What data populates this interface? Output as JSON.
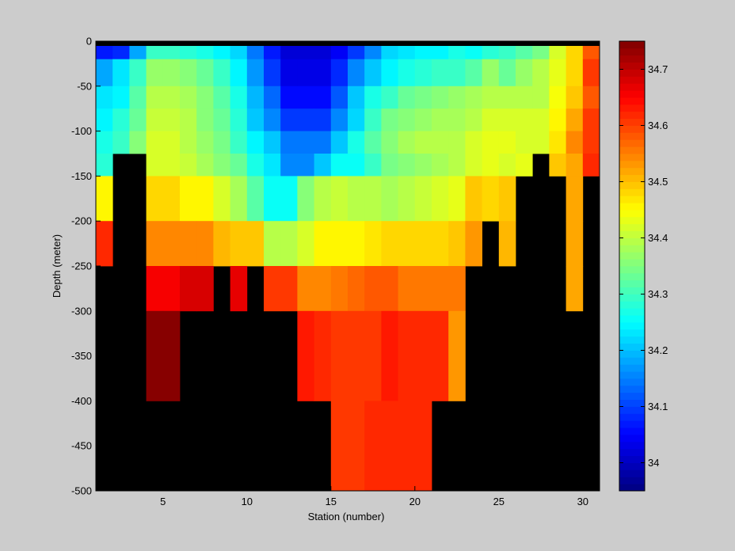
{
  "chart_data": {
    "type": "heatmap",
    "title": "",
    "xlabel": "Station (number)",
    "ylabel": "Depth (meter)",
    "xlim": [
      1,
      31
    ],
    "ylim": [
      -500,
      0
    ],
    "xticks": [
      5,
      10,
      15,
      20,
      25,
      30
    ],
    "yticks": [
      0,
      -50,
      -100,
      -150,
      -200,
      -250,
      -300,
      -350,
      -400,
      -450,
      -500
    ],
    "colorbar": {
      "range": [
        33.95,
        34.75
      ],
      "ticks": [
        34,
        34.1,
        34.2,
        34.3,
        34.4,
        34.5,
        34.6,
        34.7
      ],
      "colormap": "jet",
      "levels": 64
    },
    "missing_color": "#000000",
    "stations": [
      1,
      2,
      3,
      4,
      5,
      6,
      7,
      8,
      9,
      10,
      11,
      12,
      13,
      14,
      15,
      16,
      17,
      18,
      19,
      20,
      21,
      22,
      23,
      24,
      25,
      26,
      27,
      28,
      29,
      30
    ],
    "depths": [
      -5,
      -20,
      -50,
      -75,
      -100,
      -125,
      -150,
      -200,
      -250,
      -300,
      -400,
      -500
    ],
    "values": [
      [
        34.07,
        34.08,
        34.18,
        34.3,
        34.3,
        34.28,
        34.27,
        34.25,
        34.22,
        34.14,
        34.07,
        34.02,
        34.02,
        34.02,
        34.05,
        34.1,
        34.16,
        34.22,
        34.23,
        34.25,
        34.25,
        34.27,
        34.26,
        34.28,
        34.3,
        34.32,
        34.34,
        34.42,
        34.48,
        34.58
      ],
      [
        34.18,
        34.23,
        34.3,
        34.37,
        34.37,
        34.36,
        34.33,
        34.3,
        34.25,
        34.17,
        34.1,
        34.03,
        34.03,
        34.03,
        34.08,
        34.16,
        34.2,
        34.25,
        34.27,
        34.28,
        34.3,
        34.3,
        34.32,
        34.37,
        34.33,
        34.37,
        34.4,
        34.43,
        34.48,
        34.6
      ],
      [
        34.23,
        34.25,
        34.32,
        34.4,
        34.4,
        34.38,
        34.35,
        34.32,
        34.27,
        34.19,
        34.13,
        34.06,
        34.06,
        34.06,
        34.12,
        34.2,
        34.27,
        34.3,
        34.33,
        34.34,
        34.36,
        34.37,
        34.38,
        34.4,
        34.4,
        34.4,
        34.4,
        34.44,
        34.5,
        34.58
      ],
      [
        34.25,
        34.28,
        34.33,
        34.41,
        34.41,
        34.39,
        34.36,
        34.33,
        34.28,
        34.21,
        34.16,
        34.1,
        34.1,
        34.1,
        34.16,
        34.22,
        34.3,
        34.34,
        34.36,
        34.37,
        34.38,
        34.38,
        34.4,
        34.42,
        34.42,
        34.42,
        34.42,
        34.45,
        34.52,
        34.6
      ],
      [
        34.27,
        34.3,
        34.35,
        34.42,
        34.42,
        34.4,
        34.37,
        34.34,
        34.3,
        34.24,
        34.2,
        34.15,
        34.15,
        34.15,
        34.2,
        34.27,
        34.32,
        34.36,
        34.38,
        34.39,
        34.39,
        34.39,
        34.42,
        34.43,
        34.43,
        34.42,
        34.42,
        34.47,
        34.54,
        34.6
      ],
      [
        34.28,
        null,
        null,
        34.42,
        34.42,
        34.41,
        34.38,
        34.35,
        34.33,
        34.27,
        34.23,
        34.16,
        34.16,
        34.2,
        34.26,
        34.26,
        34.3,
        34.34,
        34.36,
        34.37,
        34.38,
        34.39,
        34.42,
        34.43,
        34.42,
        34.43,
        null,
        34.5,
        34.52,
        34.62
      ],
      [
        34.45,
        null,
        null,
        34.48,
        34.48,
        34.46,
        34.45,
        34.42,
        34.38,
        34.32,
        34.26,
        34.26,
        34.35,
        34.4,
        34.41,
        34.4,
        34.4,
        34.38,
        34.4,
        34.41,
        34.42,
        34.43,
        34.5,
        34.48,
        34.5,
        null,
        null,
        null,
        34.52,
        null
      ],
      [
        34.62,
        null,
        null,
        34.55,
        34.55,
        34.54,
        34.54,
        34.51,
        34.5,
        34.5,
        34.4,
        34.4,
        34.42,
        34.45,
        34.45,
        34.46,
        34.47,
        34.48,
        34.48,
        34.48,
        34.48,
        34.49,
        34.53,
        null,
        34.51,
        null,
        null,
        null,
        34.52,
        null
      ],
      [
        null,
        null,
        null,
        34.66,
        34.66,
        34.68,
        34.68,
        null,
        34.67,
        null,
        34.6,
        34.6,
        34.55,
        34.54,
        34.56,
        34.57,
        34.58,
        34.58,
        34.56,
        34.56,
        34.56,
        34.56,
        null,
        null,
        null,
        null,
        null,
        null,
        34.52,
        null
      ],
      [
        null,
        null,
        null,
        34.75,
        34.75,
        null,
        null,
        null,
        null,
        null,
        null,
        null,
        34.63,
        34.62,
        34.61,
        34.61,
        34.6,
        34.63,
        34.62,
        34.62,
        34.62,
        34.53,
        null,
        null,
        null,
        null,
        null,
        null,
        null,
        null
      ],
      [
        null,
        null,
        null,
        null,
        null,
        null,
        null,
        null,
        null,
        null,
        null,
        null,
        null,
        null,
        34.61,
        34.61,
        34.62,
        34.62,
        34.62,
        34.62,
        null,
        null,
        null,
        null,
        null,
        null,
        null,
        null,
        null,
        null
      ],
      [
        null,
        null,
        null,
        null,
        null,
        null,
        null,
        null,
        null,
        null,
        null,
        null,
        null,
        null,
        null,
        null,
        null,
        null,
        null,
        null,
        null,
        null,
        null,
        null,
        null,
        null,
        null,
        null,
        null,
        null
      ]
    ]
  }
}
